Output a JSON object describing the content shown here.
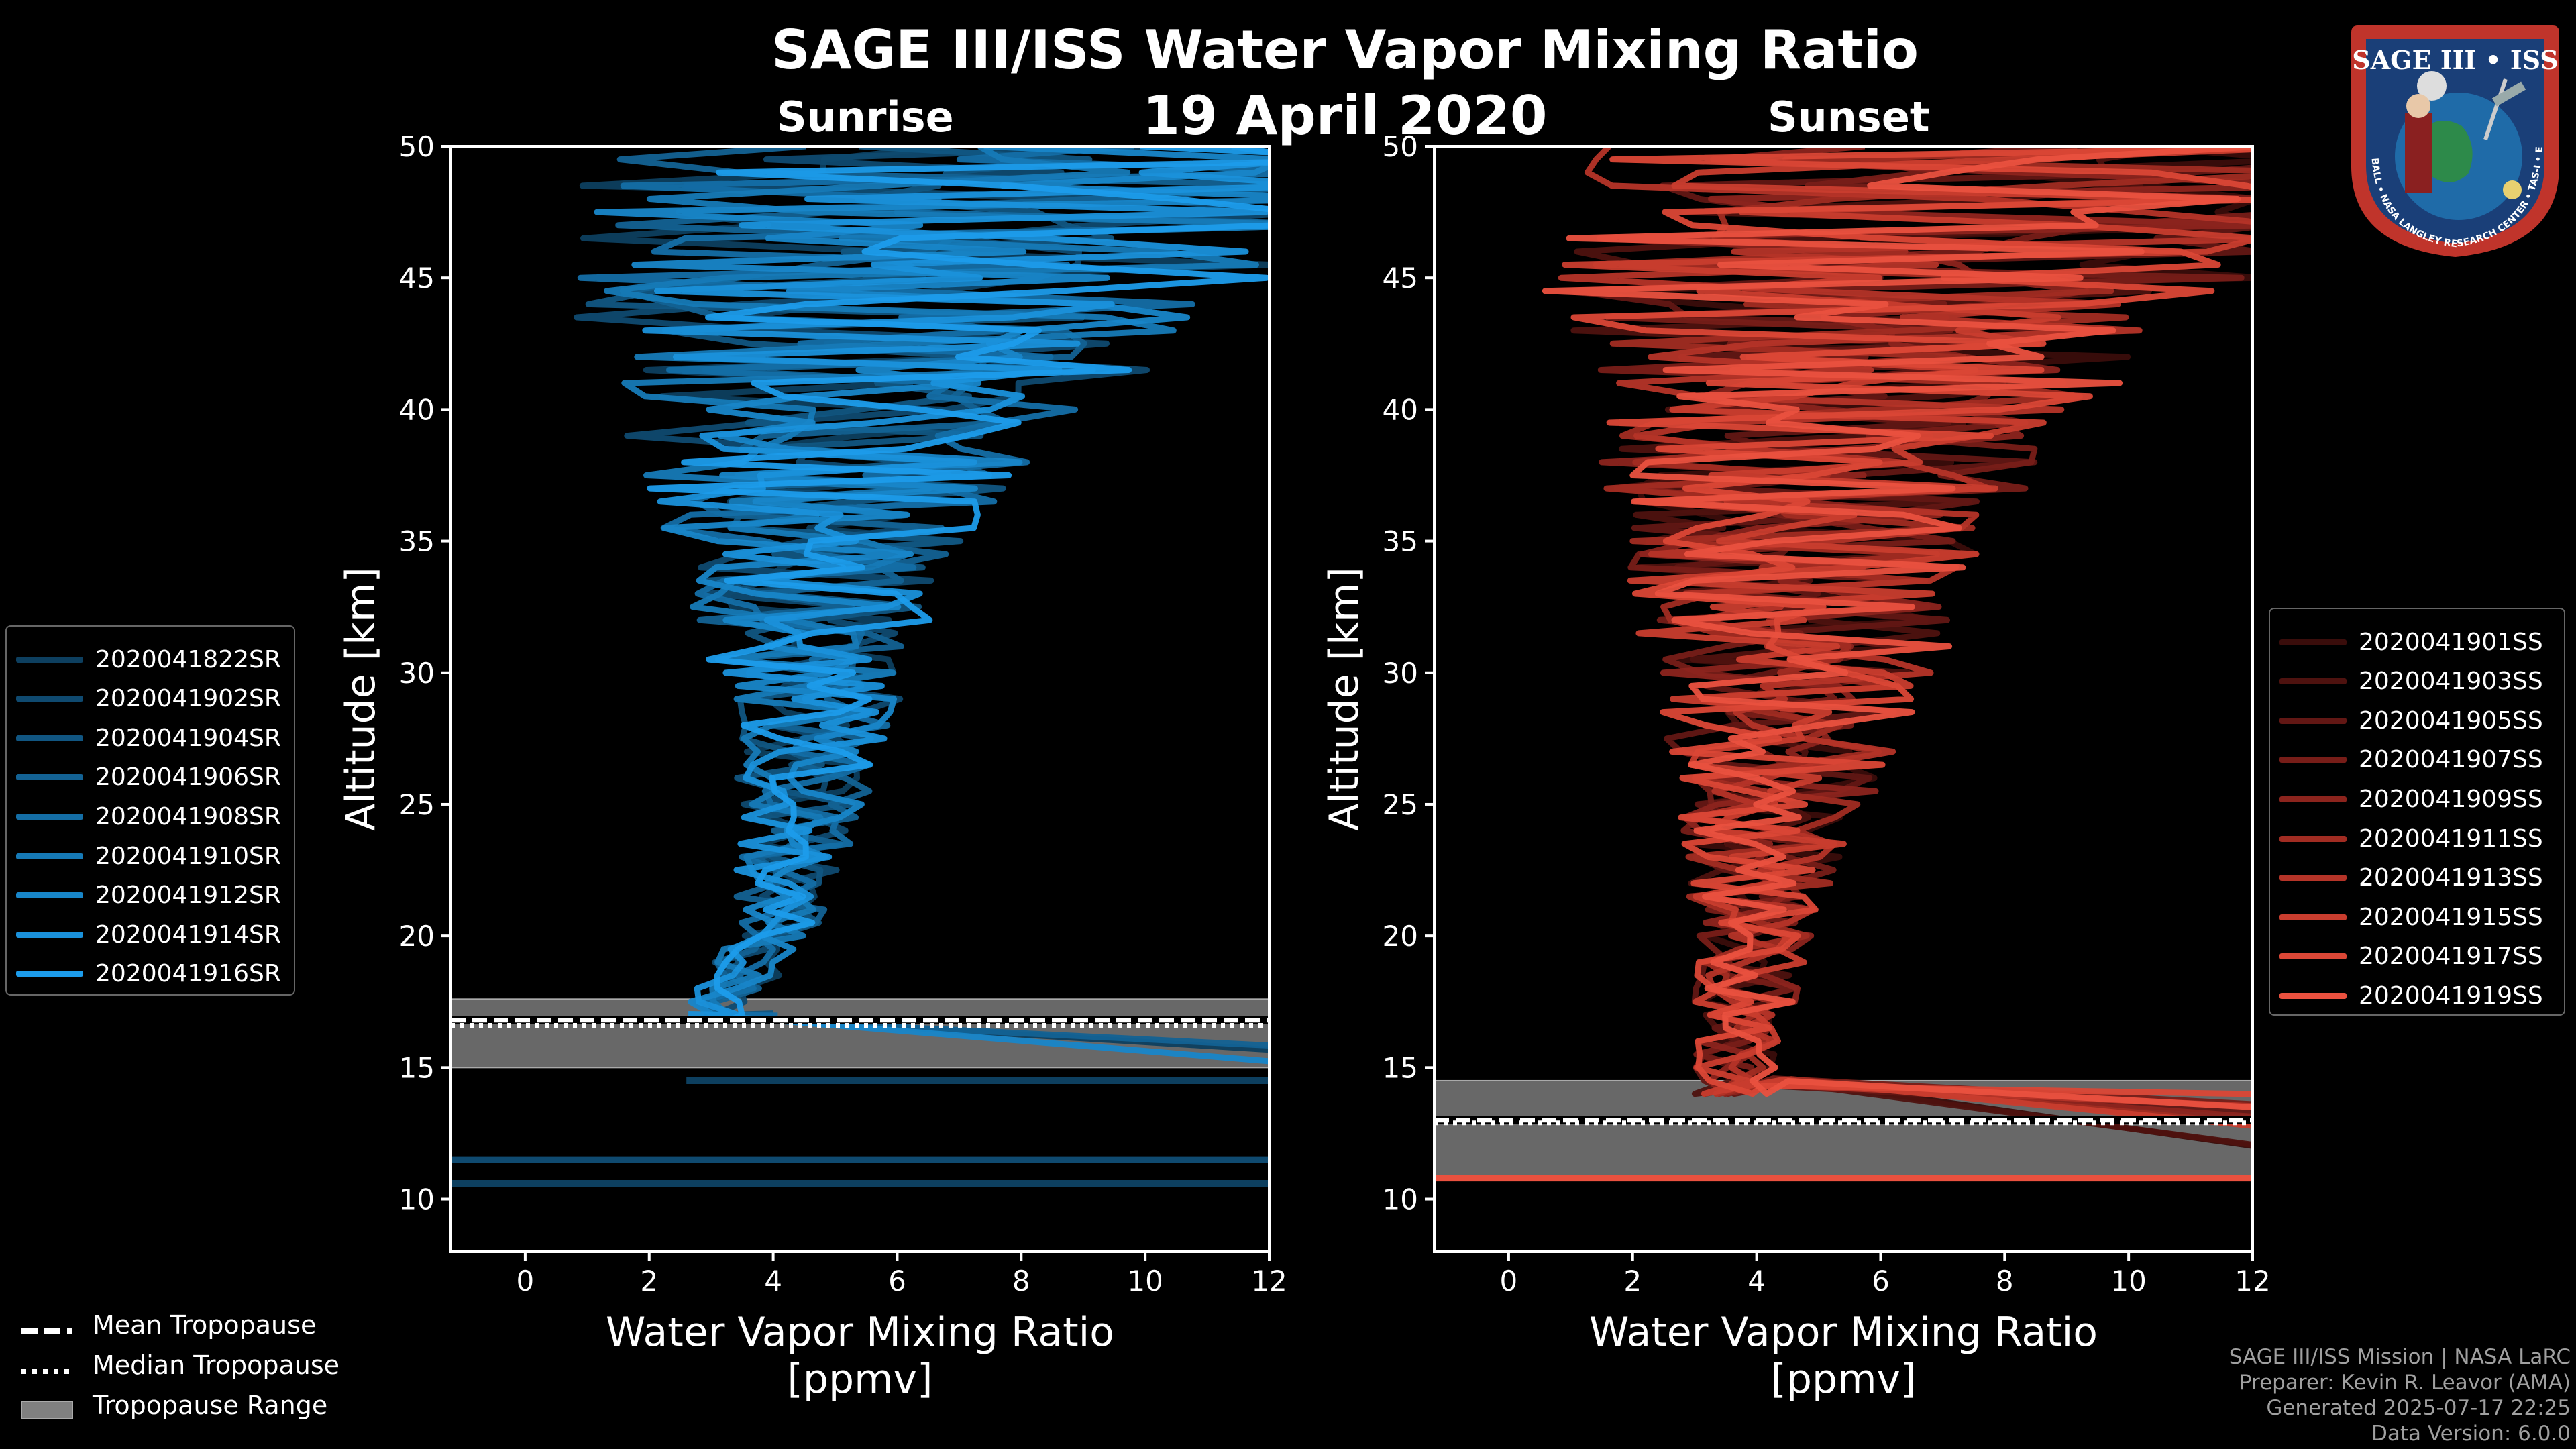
{
  "title": "SAGE III/ISS Water Vapor Mixing Ratio",
  "date": "19 April 2020",
  "credits": [
    "SAGE III/ISS Mission | NASA LaRC",
    "Preparer: Kevin R. Leavor (AMA)",
    "Generated 2025-07-17 22:25",
    "Data Version: 6.0.0"
  ],
  "badge": {
    "name": "SAGE III • ISS",
    "ring_text": "BALL • NASA LANGLEY RESEARCH CENTER • TAS-I • ESA"
  },
  "tropopause_legend": {
    "mean": "Mean Tropopause",
    "median": "Median Tropopause",
    "range": "Tropopause Range"
  },
  "chart_data": [
    {
      "type": "line",
      "title": "Sunrise",
      "xlabel": "Water Vapor Mixing Ratio [ppmv]",
      "xlabel_lines": [
        "Water Vapor Mixing Ratio",
        "[ppmv]"
      ],
      "ylabel": "Altitude [km]",
      "xlim": [
        -1.2,
        12
      ],
      "ylim": [
        8,
        50
      ],
      "xticks": [
        0,
        2,
        4,
        6,
        8,
        10,
        12
      ],
      "yticks": [
        10,
        15,
        20,
        25,
        30,
        35,
        40,
        45,
        50
      ],
      "color": "#1a95e0",
      "tropopause": {
        "mean": 16.8,
        "median": 16.6,
        "min": 15.0,
        "max": 17.6
      },
      "series_names": [
        "2020041822SR",
        "2020041902SR",
        "2020041904SR",
        "2020041906SR",
        "2020041908SR",
        "2020041910SR",
        "2020041912SR",
        "2020041914SR",
        "2020041916SR"
      ],
      "series_colors": [
        "#0d3f5f",
        "#0f4a70",
        "#115682",
        "#136294",
        "#146ea6",
        "#167ab7",
        "#1886c9",
        "#1a91db",
        "#1c9ceb"
      ],
      "base_shape": {
        "altitudes": [
          17,
          20,
          25,
          30,
          35,
          40,
          45,
          50
        ],
        "centers": [
          3.0,
          4.0,
          4.5,
          4.6,
          4.7,
          5.2,
          6.5,
          8.0
        ],
        "spreads": [
          0.5,
          0.7,
          1.0,
          1.6,
          2.4,
          3.8,
          6.0,
          7.0
        ]
      },
      "low_levels": [
        {
          "series": 0,
          "alt": 14.5,
          "x_start": 2.6
        },
        {
          "series": 1,
          "alt": 11.5,
          "x_start": -1.2
        },
        {
          "series": 0,
          "alt": 10.6,
          "x_start": -1.2
        }
      ]
    },
    {
      "type": "line",
      "title": "Sunset",
      "xlabel": "Water Vapor Mixing Ratio [ppmv]",
      "xlabel_lines": [
        "Water Vapor Mixing Ratio",
        "[ppmv]"
      ],
      "ylabel": "Altitude [km]",
      "xlim": [
        -1.2,
        12
      ],
      "ylim": [
        8,
        50
      ],
      "xticks": [
        0,
        2,
        4,
        6,
        8,
        10,
        12
      ],
      "yticks": [
        10,
        15,
        20,
        25,
        30,
        35,
        40,
        45,
        50
      ],
      "color": "#e85545",
      "tropopause": {
        "mean": 13.0,
        "median": 12.9,
        "min": 10.8,
        "max": 14.5
      },
      "series_names": [
        "2020041901SS",
        "2020041903SS",
        "2020041905SS",
        "2020041907SS",
        "2020041909SS",
        "2020041911SS",
        "2020041913SS",
        "2020041915SS",
        "2020041917SS",
        "2020041919SS"
      ],
      "series_colors": [
        "#3a0d0b",
        "#4e120f",
        "#621714",
        "#771d18",
        "#8c241d",
        "#a12c22",
        "#b53428",
        "#c93d2e",
        "#db4736",
        "#ea513f"
      ],
      "base_shape": {
        "altitudes": [
          14,
          17,
          20,
          25,
          30,
          35,
          40,
          45,
          50
        ],
        "centers": [
          3.6,
          3.8,
          4.0,
          4.3,
          4.6,
          4.8,
          5.2,
          6.5,
          7.5
        ],
        "spreads": [
          0.6,
          0.8,
          1.0,
          1.6,
          2.4,
          3.0,
          4.0,
          6.0,
          7.0
        ]
      },
      "low_levels": [
        {
          "series": 9,
          "alt": 10.8,
          "x_start": -1.2
        }
      ]
    }
  ]
}
